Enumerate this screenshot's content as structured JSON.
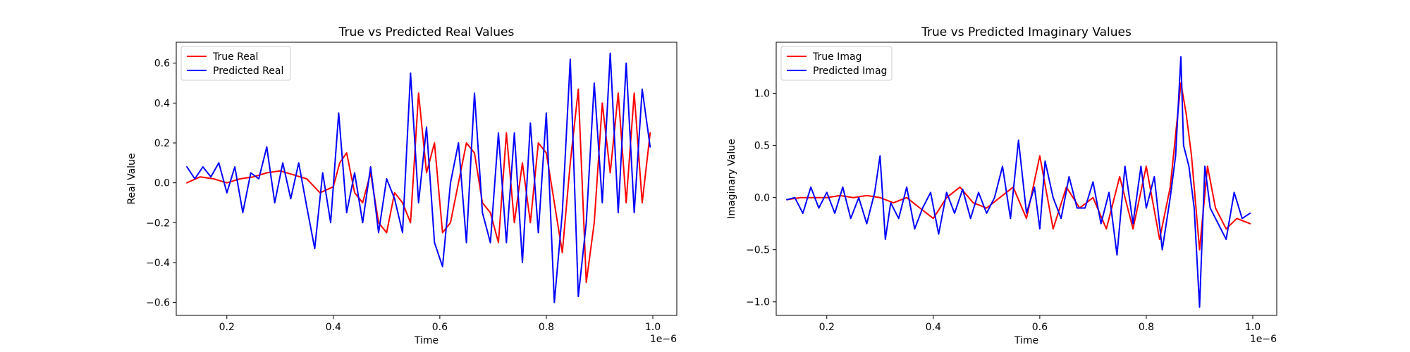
{
  "chart_data": [
    {
      "type": "line",
      "title": "True vs Predicted Real Values",
      "xlabel": "Time",
      "ylabel": "Real Value",
      "x_offset_label": "1e−6",
      "xlim": [
        0.105,
        1.045
      ],
      "ylim": [
        -0.665,
        0.705
      ],
      "xticks": [
        0.2,
        0.4,
        0.6,
        0.8,
        1.0
      ],
      "xtick_labels": [
        "0.2",
        "0.4",
        "0.6",
        "0.8",
        "1.0"
      ],
      "yticks": [
        -0.6,
        -0.4,
        -0.2,
        0.0,
        0.2,
        0.4,
        0.6
      ],
      "ytick_labels": [
        "−0.6",
        "−0.4",
        "−0.2",
        "0.0",
        "0.2",
        "0.4",
        "0.6"
      ],
      "grid": false,
      "legend_position": "top-left",
      "series": [
        {
          "name": "True Real",
          "color": "#ff0000",
          "x": [
            0.125,
            0.15,
            0.175,
            0.2,
            0.225,
            0.25,
            0.275,
            0.3,
            0.325,
            0.35,
            0.375,
            0.4,
            0.412,
            0.425,
            0.44,
            0.455,
            0.47,
            0.485,
            0.5,
            0.515,
            0.53,
            0.545,
            0.56,
            0.575,
            0.59,
            0.605,
            0.62,
            0.635,
            0.65,
            0.665,
            0.68,
            0.695,
            0.71,
            0.725,
            0.74,
            0.755,
            0.77,
            0.785,
            0.8,
            0.815,
            0.83,
            0.845,
            0.86,
            0.875,
            0.89,
            0.905,
            0.92,
            0.935,
            0.95,
            0.965,
            0.98,
            0.995
          ],
          "y": [
            0.0,
            0.03,
            0.02,
            0.0,
            0.02,
            0.03,
            0.05,
            0.06,
            0.04,
            0.02,
            -0.05,
            -0.02,
            0.1,
            0.15,
            -0.05,
            -0.1,
            0.05,
            -0.2,
            -0.25,
            -0.05,
            -0.1,
            -0.2,
            0.45,
            0.05,
            0.2,
            -0.25,
            -0.2,
            0.0,
            0.2,
            0.15,
            -0.1,
            -0.15,
            -0.3,
            0.25,
            -0.2,
            0.1,
            -0.2,
            0.2,
            0.15,
            -0.1,
            -0.35,
            0.1,
            0.47,
            -0.5,
            -0.2,
            0.4,
            0.05,
            0.45,
            -0.1,
            0.45,
            -0.1,
            0.25
          ]
        },
        {
          "name": "Predicted Real",
          "color": "#0000ff",
          "x": [
            0.125,
            0.14,
            0.155,
            0.17,
            0.185,
            0.2,
            0.215,
            0.23,
            0.245,
            0.26,
            0.275,
            0.29,
            0.305,
            0.32,
            0.335,
            0.35,
            0.365,
            0.38,
            0.395,
            0.41,
            0.425,
            0.44,
            0.455,
            0.47,
            0.485,
            0.5,
            0.515,
            0.53,
            0.545,
            0.56,
            0.575,
            0.59,
            0.605,
            0.62,
            0.635,
            0.65,
            0.665,
            0.68,
            0.695,
            0.71,
            0.725,
            0.74,
            0.755,
            0.77,
            0.785,
            0.8,
            0.815,
            0.83,
            0.845,
            0.86,
            0.875,
            0.89,
            0.905,
            0.92,
            0.935,
            0.95,
            0.965,
            0.98,
            0.995
          ],
          "y": [
            0.08,
            0.02,
            0.08,
            0.03,
            0.1,
            -0.05,
            0.08,
            -0.15,
            0.05,
            0.02,
            0.18,
            -0.1,
            0.1,
            -0.08,
            0.1,
            -0.12,
            -0.33,
            0.05,
            -0.2,
            0.35,
            -0.15,
            0.05,
            -0.2,
            0.08,
            -0.25,
            0.02,
            -0.08,
            -0.25,
            0.55,
            -0.1,
            0.28,
            -0.3,
            -0.42,
            0.0,
            0.2,
            -0.3,
            0.45,
            -0.15,
            -0.3,
            0.25,
            -0.3,
            0.25,
            -0.4,
            0.3,
            -0.25,
            0.35,
            -0.6,
            -0.15,
            0.62,
            -0.57,
            -0.2,
            0.5,
            -0.1,
            0.65,
            -0.15,
            0.6,
            -0.15,
            0.47,
            0.18
          ]
        }
      ]
    },
    {
      "type": "line",
      "title": "True vs Predicted Imaginary Values",
      "xlabel": "Time",
      "ylabel": "Imaginary Value",
      "x_offset_label": "1e−6",
      "xlim": [
        0.105,
        1.045
      ],
      "ylim": [
        -1.13,
        1.49
      ],
      "xticks": [
        0.2,
        0.4,
        0.6,
        0.8,
        1.0
      ],
      "xtick_labels": [
        "0.2",
        "0.4",
        "0.6",
        "0.8",
        "1.0"
      ],
      "yticks": [
        -1.0,
        -0.5,
        0.0,
        0.5,
        1.0
      ],
      "ytick_labels": [
        "−1.0",
        "−0.5",
        "0.0",
        "0.5",
        "1.0"
      ],
      "grid": false,
      "legend_position": "top-left",
      "series": [
        {
          "name": "True Imag",
          "color": "#ff0000",
          "x": [
            0.125,
            0.15,
            0.175,
            0.2,
            0.225,
            0.25,
            0.275,
            0.3,
            0.325,
            0.35,
            0.375,
            0.4,
            0.425,
            0.45,
            0.475,
            0.5,
            0.525,
            0.55,
            0.575,
            0.6,
            0.625,
            0.65,
            0.675,
            0.7,
            0.725,
            0.75,
            0.775,
            0.8,
            0.825,
            0.845,
            0.855,
            0.865,
            0.875,
            0.885,
            0.9,
            0.915,
            0.93,
            0.95,
            0.97,
            0.995
          ],
          "y": [
            -0.02,
            0.0,
            0.0,
            0.0,
            0.02,
            0.0,
            0.02,
            0.0,
            -0.05,
            0.0,
            -0.1,
            -0.2,
            0.0,
            0.1,
            -0.05,
            -0.1,
            0.0,
            0.1,
            -0.2,
            0.4,
            -0.3,
            0.1,
            -0.1,
            0.0,
            -0.3,
            0.2,
            -0.3,
            0.3,
            -0.4,
            0.1,
            0.6,
            1.1,
            0.8,
            0.4,
            -0.5,
            0.3,
            -0.1,
            -0.3,
            -0.2,
            -0.25
          ]
        },
        {
          "name": "Predicted Imag",
          "color": "#0000ff",
          "x": [
            0.125,
            0.14,
            0.155,
            0.17,
            0.185,
            0.2,
            0.215,
            0.23,
            0.245,
            0.26,
            0.275,
            0.29,
            0.3,
            0.31,
            0.32,
            0.335,
            0.35,
            0.365,
            0.38,
            0.395,
            0.41,
            0.425,
            0.44,
            0.455,
            0.47,
            0.485,
            0.5,
            0.515,
            0.53,
            0.545,
            0.56,
            0.575,
            0.59,
            0.6,
            0.61,
            0.625,
            0.64,
            0.655,
            0.67,
            0.685,
            0.7,
            0.715,
            0.73,
            0.745,
            0.76,
            0.775,
            0.79,
            0.8,
            0.815,
            0.83,
            0.845,
            0.855,
            0.865,
            0.87,
            0.88,
            0.89,
            0.9,
            0.91,
            0.92,
            0.935,
            0.95,
            0.965,
            0.98,
            0.995
          ],
          "y": [
            -0.02,
            0.0,
            -0.15,
            0.1,
            -0.1,
            0.05,
            -0.15,
            0.1,
            -0.2,
            0.0,
            -0.25,
            0.05,
            0.4,
            -0.4,
            -0.05,
            -0.2,
            0.1,
            -0.3,
            -0.1,
            0.05,
            -0.35,
            0.05,
            -0.15,
            0.08,
            -0.2,
            0.05,
            -0.15,
            0.0,
            0.3,
            -0.2,
            0.55,
            -0.15,
            0.1,
            -0.3,
            0.35,
            0.0,
            -0.2,
            0.2,
            -0.1,
            -0.1,
            0.15,
            -0.25,
            0.05,
            -0.55,
            0.3,
            -0.25,
            0.3,
            -0.1,
            0.2,
            -0.5,
            0.0,
            0.4,
            1.35,
            0.5,
            0.3,
            -0.1,
            -1.05,
            0.3,
            -0.1,
            -0.25,
            -0.4,
            0.05,
            -0.2,
            -0.15
          ]
        }
      ]
    }
  ]
}
